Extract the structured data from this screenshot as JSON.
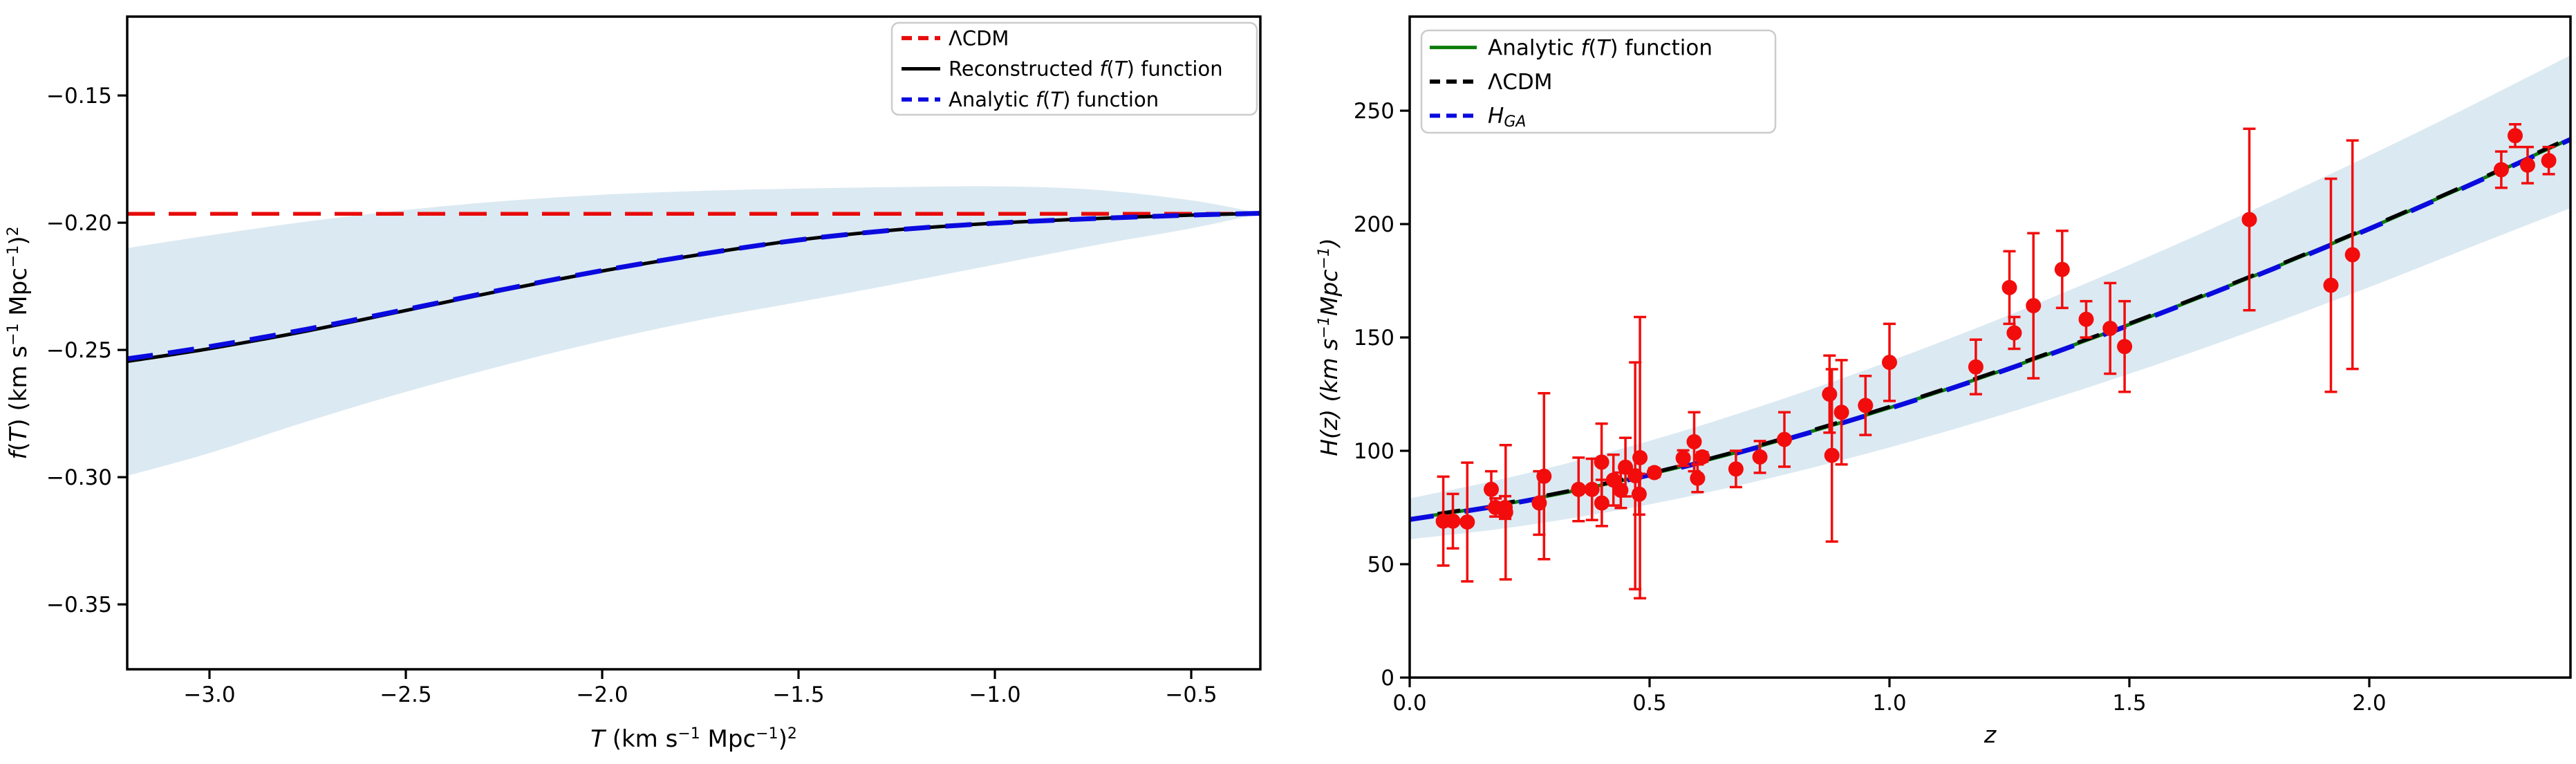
{
  "figure": {
    "background": "#ffffff"
  },
  "chart_data": [
    {
      "id": "fT-reconstruction",
      "type": "line",
      "xlabel": [
        {
          "t": "T",
          "i": true
        },
        {
          "t": " (km s"
        },
        {
          "t": "−1",
          "sup": true
        },
        {
          "t": " Mpc"
        },
        {
          "t": "−1",
          "sup": true
        },
        {
          "t": ")"
        },
        {
          "t": "2",
          "sup": true
        }
      ],
      "ylabel": [
        {
          "t": "f",
          "i": true
        },
        {
          "t": "("
        },
        {
          "t": "T",
          "i": true
        },
        {
          "t": ") (km s"
        },
        {
          "t": "−1",
          "sup": true
        },
        {
          "t": " Mpc"
        },
        {
          "t": "−1",
          "sup": true
        },
        {
          "t": ")"
        },
        {
          "t": "2",
          "sup": true
        }
      ],
      "xlim": [
        -3.2095,
        -0.324
      ],
      "ylim": [
        -0.3755,
        -0.119
      ],
      "xticks": {
        "values": [
          -3.0,
          -2.5,
          -2.0,
          -1.5,
          -1.0,
          -0.5
        ],
        "labels": [
          "−3.0",
          "−2.5",
          "−2.0",
          "−1.5",
          "−1.0",
          "−0.5"
        ]
      },
      "yticks": {
        "values": [
          -0.15,
          -0.2,
          -0.25,
          -0.3,
          -0.35
        ],
        "labels": [
          "−0.15",
          "−0.20",
          "−0.25",
          "−0.30",
          "−0.35"
        ]
      },
      "x": [
        -3.21,
        -3.0,
        -2.75,
        -2.5,
        -2.25,
        -2.0,
        -1.75,
        -1.5,
        -1.25,
        -1.0,
        -0.75,
        -0.5,
        -0.324
      ],
      "series": [
        {
          "name": "ΛCDM",
          "color": "#e80b0b",
          "style": "dashed",
          "constant": -0.1965
        },
        {
          "name": "Reconstructed f(T) function",
          "color": "#000000",
          "style": "solid",
          "values": [
            -0.2545,
            -0.2495,
            -0.2425,
            -0.2345,
            -0.2265,
            -0.219,
            -0.2125,
            -0.2068,
            -0.2028,
            -0.2002,
            -0.1984,
            -0.197,
            -0.1963
          ]
        },
        {
          "name": "Analytic f(T) function",
          "color": "#0a0adf",
          "style": "dashed",
          "values": [
            -0.2535,
            -0.2487,
            -0.2418,
            -0.2341,
            -0.2262,
            -0.2188,
            -0.2124,
            -0.2068,
            -0.2028,
            -0.2002,
            -0.1984,
            -0.197,
            -0.1963
          ]
        }
      ],
      "band": {
        "color": "#dbe9f2",
        "upper": [
          -0.21,
          -0.205,
          -0.1995,
          -0.195,
          -0.1915,
          -0.189,
          -0.1875,
          -0.1866,
          -0.186,
          -0.1857,
          -0.187,
          -0.1912,
          -0.1963
        ],
        "lower": [
          -0.2995,
          -0.2905,
          -0.278,
          -0.2665,
          -0.256,
          -0.2465,
          -0.2382,
          -0.2312,
          -0.224,
          -0.2165,
          -0.209,
          -0.2022,
          -0.1964
        ]
      },
      "legend": [
        {
          "segments": [
            {
              "t": "ΛCDM"
            }
          ],
          "color": "#e80b0b",
          "dashed": true
        },
        {
          "segments": [
            {
              "t": "Reconstructed "
            },
            {
              "t": "f",
              "i": true
            },
            {
              "t": "("
            },
            {
              "t": "T",
              "i": true
            },
            {
              "t": ") function"
            }
          ],
          "color": "#000000",
          "dashed": false
        },
        {
          "segments": [
            {
              "t": "Analytic "
            },
            {
              "t": "f",
              "i": true
            },
            {
              "t": "("
            },
            {
              "t": "T",
              "i": true
            },
            {
              "t": ") function"
            }
          ],
          "color": "#0a0adf",
          "dashed": true
        }
      ]
    },
    {
      "id": "Hz-data",
      "type": "line+scatter",
      "xlabel": [
        {
          "t": "z",
          "i": true
        }
      ],
      "ylabel": [
        {
          "t": "H(z) (km s",
          "i": true
        },
        {
          "t": "−1",
          "sup": true,
          "i": true
        },
        {
          "t": "Mpc",
          "i": true
        },
        {
          "t": "−1",
          "sup": true,
          "i": true
        },
        {
          "t": ")",
          "i": true
        }
      ],
      "xlim": [
        0,
        2.4193
      ],
      "ylim": [
        0,
        291.5
      ],
      "xticks": {
        "values": [
          0.0,
          0.5,
          1.0,
          1.5,
          2.0
        ],
        "labels": [
          "0.0",
          "0.5",
          "1.0",
          "1.5",
          "2.0"
        ]
      },
      "yticks": {
        "values": [
          0,
          50,
          100,
          150,
          200,
          250
        ],
        "labels": [
          "0",
          "50",
          "100",
          "150",
          "200",
          "250"
        ]
      },
      "z": [
        0,
        0.2,
        0.4,
        0.6,
        0.8,
        1.0,
        1.2,
        1.4,
        1.6,
        1.8,
        2.0,
        2.2,
        2.42
      ],
      "curves": [
        {
          "name": "Analytic f(T) function",
          "color": "#0b7d0b",
          "style": "solid",
          "H": [
            70,
            76.6,
            84.9,
            94.8,
            106.3,
            119.0,
            132.9,
            147.9,
            163.8,
            180.6,
            198.2,
            216.6,
            237.7
          ]
        },
        {
          "name": "ΛCDM",
          "color": "#000000",
          "style": "dashed",
          "H": [
            70.3,
            77.0,
            85.3,
            95.2,
            106.7,
            119.4,
            133.3,
            148.3,
            164.2,
            181.0,
            198.6,
            217.0,
            238.2
          ]
        },
        {
          "name": "H_GA",
          "color": "#0a0adf",
          "style": "dashed",
          "H": [
            69.7,
            76.3,
            84.6,
            94.5,
            106.0,
            118.7,
            132.6,
            147.6,
            163.5,
            180.3,
            197.9,
            216.3,
            237.4
          ]
        }
      ],
      "band": {
        "color": "#dbe9f2",
        "upper": [
          79.0,
          87.9,
          98.5,
          110.7,
          124.5,
          139.5,
          155.7,
          173.0,
          191.2,
          210.3,
          230.2,
          250.9,
          274.5
        ],
        "lower": [
          61.0,
          65.9,
          72.5,
          80.7,
          90.5,
          101.5,
          113.7,
          127.0,
          141.2,
          156.3,
          172.2,
          188.9,
          207.1
        ]
      },
      "points": {
        "name": "H(z) measurements",
        "color": "#f20c0c",
        "marker": "circle",
        "z": [
          0.07,
          0.09,
          0.12,
          0.17,
          0.179,
          0.199,
          0.2,
          0.27,
          0.28,
          0.352,
          0.38,
          0.4,
          0.4004,
          0.4247,
          0.44,
          0.4497,
          0.47,
          0.4783,
          0.48,
          0.51,
          0.57,
          0.593,
          0.6,
          0.61,
          0.68,
          0.73,
          0.781,
          0.875,
          0.88,
          0.9,
          0.95,
          1.0,
          1.18,
          1.25,
          1.26,
          1.3,
          1.36,
          1.41,
          1.46,
          1.49,
          1.75,
          1.92,
          1.965,
          2.275,
          2.304,
          2.33,
          2.374
        ],
        "H": [
          69,
          69,
          68.6,
          83,
          75,
          75,
          72.9,
          77,
          88.8,
          83,
          83,
          95,
          77,
          87.1,
          82.6,
          92.8,
          89,
          80.9,
          97,
          90.4,
          96.8,
          104,
          87.9,
          97.3,
          92,
          97.3,
          105,
          125,
          98,
          117,
          120,
          139,
          137,
          172,
          152,
          164,
          180,
          158,
          154,
          146,
          202,
          173,
          186.5,
          224,
          239,
          226,
          228
        ],
        "err": [
          19.6,
          12,
          26.2,
          8,
          4,
          5,
          29.6,
          14,
          36.6,
          14,
          13.5,
          17,
          10.2,
          11.2,
          7.8,
          12.9,
          50,
          9,
          62,
          1.9,
          3.4,
          13,
          6.1,
          2.1,
          8,
          7,
          12,
          17,
          38,
          23,
          13,
          17,
          12,
          16,
          7,
          32,
          17,
          8,
          20,
          20,
          40,
          47,
          50.4,
          8,
          5,
          8,
          6
        ]
      },
      "legend": [
        {
          "segments": [
            {
              "t": "Analytic "
            },
            {
              "t": "f",
              "i": true
            },
            {
              "t": "("
            },
            {
              "t": "T",
              "i": true
            },
            {
              "t": ") function"
            }
          ],
          "color": "#0b7d0b",
          "dashed": false
        },
        {
          "segments": [
            {
              "t": "ΛCDM"
            }
          ],
          "color": "#000000",
          "dashed": true
        },
        {
          "segments": [
            {
              "t": "H",
              "i": true
            },
            {
              "t": "GA",
              "i": true,
              "sub": true
            }
          ],
          "color": "#0a0adf",
          "dashed": true
        }
      ]
    }
  ]
}
